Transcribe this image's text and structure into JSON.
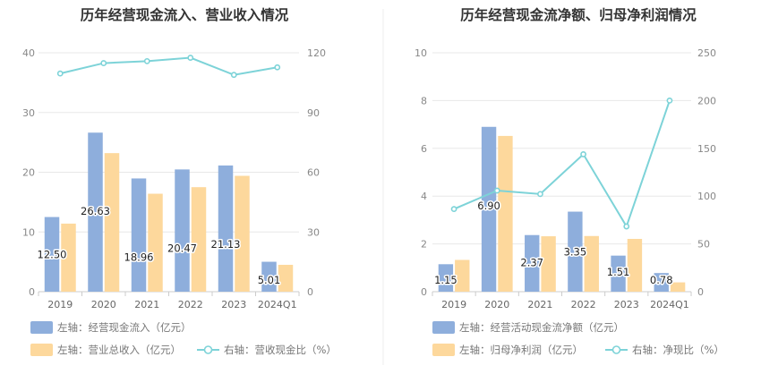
{
  "colors": {
    "bar_primary": "#8eaedc",
    "bar_secondary": "#fdd89c",
    "line": "#7dd3d8",
    "grid": "#e8e8e8",
    "axis": "#cccccc",
    "title": "#333333"
  },
  "chart_data": [
    {
      "type": "bar",
      "title": "历年经营现金流入、营业收入情况",
      "categories": [
        "2019",
        "2020",
        "2021",
        "2022",
        "2023",
        "2024Q1"
      ],
      "left_axis": {
        "ylim": [
          0,
          40
        ],
        "ticks": [
          "0",
          "10",
          "20",
          "30",
          "40"
        ]
      },
      "right_axis": {
        "ylim": [
          0,
          120
        ],
        "ticks": [
          "0",
          "30",
          "60",
          "90",
          "120"
        ]
      },
      "series": [
        {
          "name": "左轴：经营现金流入（亿元）",
          "kind": "bar",
          "axis": "left",
          "values": [
            12.5,
            26.63,
            18.96,
            20.47,
            21.13,
            5.01
          ],
          "labels": [
            "12.50",
            "26.63",
            "18.96",
            "20.47",
            "21.13",
            "5.01"
          ]
        },
        {
          "name": "左轴：营业总收入（亿元）",
          "kind": "bar",
          "axis": "left",
          "values": [
            11.4,
            23.2,
            16.4,
            17.5,
            19.4,
            4.5
          ]
        },
        {
          "name": "右轴：营收现金比（%）",
          "kind": "line",
          "axis": "right",
          "values": [
            109.6,
            114.8,
            115.8,
            117.5,
            108.9,
            112.7
          ]
        }
      ]
    },
    {
      "type": "bar",
      "title": "历年经营现金流净额、归母净利润情况",
      "categories": [
        "2019",
        "2020",
        "2021",
        "2022",
        "2023",
        "2024Q1"
      ],
      "left_axis": {
        "ylim": [
          0,
          10
        ],
        "ticks": [
          "0",
          "2",
          "4",
          "6",
          "8",
          "10"
        ]
      },
      "right_axis": {
        "ylim": [
          0,
          250
        ],
        "ticks": [
          "0",
          "50",
          "100",
          "150",
          "200",
          "250"
        ]
      },
      "series": [
        {
          "name": "左轴：经营活动现金流净额（亿元）",
          "kind": "bar",
          "axis": "left",
          "values": [
            1.15,
            6.9,
            2.37,
            3.35,
            1.51,
            0.78
          ],
          "labels": [
            "1.15",
            "6.90",
            "2.37",
            "3.35",
            "1.51",
            "0.78"
          ]
        },
        {
          "name": "左轴：归母净利润（亿元）",
          "kind": "bar",
          "axis": "left",
          "values": [
            1.33,
            6.52,
            2.32,
            2.33,
            2.21,
            0.39
          ]
        },
        {
          "name": "右轴：净现比（%）",
          "kind": "line",
          "axis": "right",
          "values": [
            86.5,
            105.8,
            102.2,
            143.8,
            68.3,
            200.0
          ]
        }
      ]
    }
  ]
}
